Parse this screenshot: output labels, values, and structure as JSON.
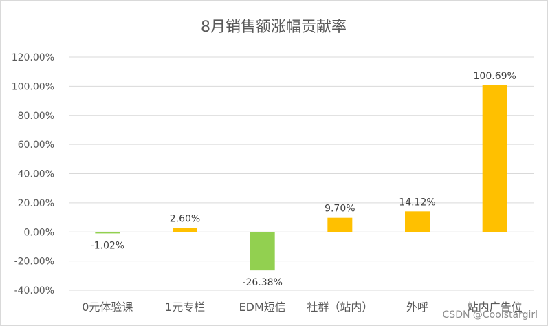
{
  "chart_data": {
    "type": "bar",
    "title": "8月销售额涨幅贡献率",
    "xlabel": "",
    "ylabel": "",
    "categories": [
      "0元体验课",
      "1元专栏",
      "EDM短信",
      "社群（站内）",
      "外呼",
      "站内广告位"
    ],
    "values": [
      -1.02,
      2.6,
      -26.38,
      9.7,
      14.12,
      100.69
    ],
    "data_labels": [
      "-1.02%",
      "2.60%",
      "-26.38%",
      "9.70%",
      "14.12%",
      "100.69%"
    ],
    "ylim": [
      -40,
      120
    ],
    "yticks": [
      "120.00%",
      "100.00%",
      "80.00%",
      "60.00%",
      "40.00%",
      "20.00%",
      "0.00%",
      "-20.00%",
      "-40.00%"
    ],
    "ytick_values": [
      120,
      100,
      80,
      60,
      40,
      20,
      0,
      -20,
      -40
    ],
    "grid": true,
    "legend": "none",
    "colors": {
      "positive": "#FFC000",
      "negative": "#92D050",
      "grid": "#D9D9D9",
      "text": "#595959"
    }
  },
  "watermark": "CSDN @Coolstargirl"
}
